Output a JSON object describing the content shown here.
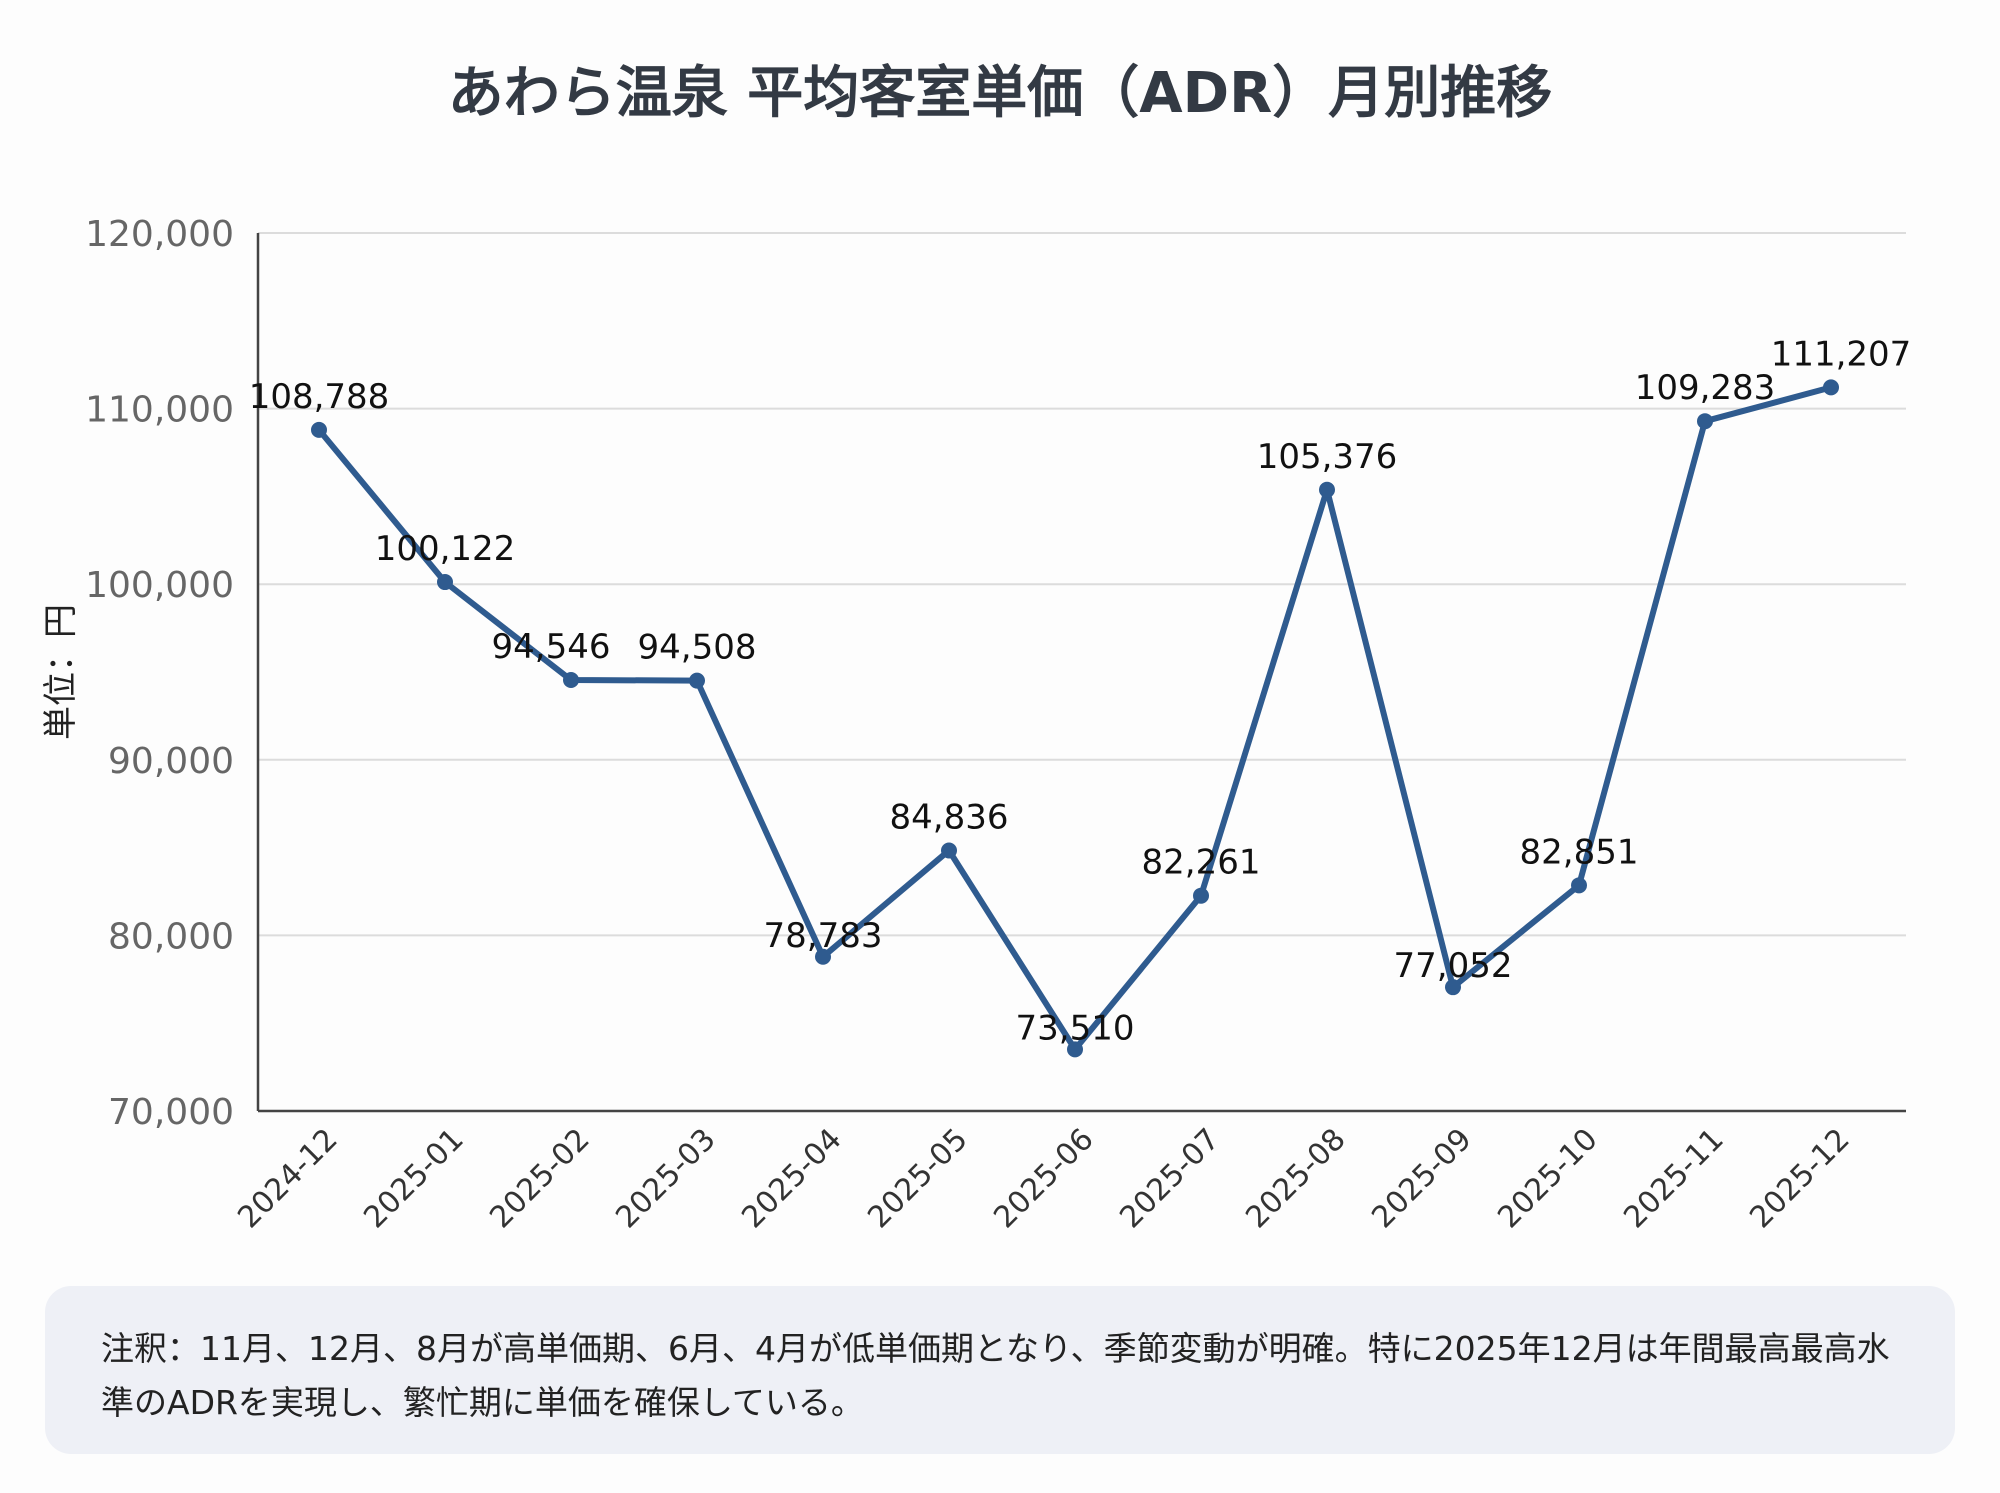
{
  "chart_data": {
    "type": "line",
    "title": "あわら温泉 平均客室単価（ADR）月別推移",
    "xlabel": "",
    "ylabel": "単位：円",
    "categories": [
      "2024-12",
      "2025-01",
      "2025-02",
      "2025-03",
      "2025-04",
      "2025-05",
      "2025-06",
      "2025-07",
      "2025-08",
      "2025-09",
      "2025-10",
      "2025-11",
      "2025-12"
    ],
    "values": [
      108788,
      100122,
      94546,
      94508,
      78783,
      84836,
      73510,
      82261,
      105376,
      77052,
      82851,
      109283,
      111207
    ],
    "data_labels": [
      "108,788",
      "100,122",
      "94,546",
      "94,508",
      "78,783",
      "84,836",
      "73,510",
      "82,261",
      "105,376",
      "77,052",
      "82,851",
      "109,283",
      "111,207"
    ],
    "ylim": [
      70000,
      120000
    ],
    "yticks": [
      70000,
      80000,
      90000,
      100000,
      110000,
      120000
    ],
    "ytick_labels": [
      "70,000",
      "80,000",
      "90,000",
      "100,000",
      "110,000",
      "120,000"
    ],
    "grid": true,
    "legend": "none",
    "line_color": "#2f5b8f"
  },
  "note": "注釈：11月、12月、8月が高単価期、6月、4月が低単価期となり、季節変動が明確。特に2025年12月は年間最高最高水準のADRを実現し、繁忙期に単価を確保している。"
}
